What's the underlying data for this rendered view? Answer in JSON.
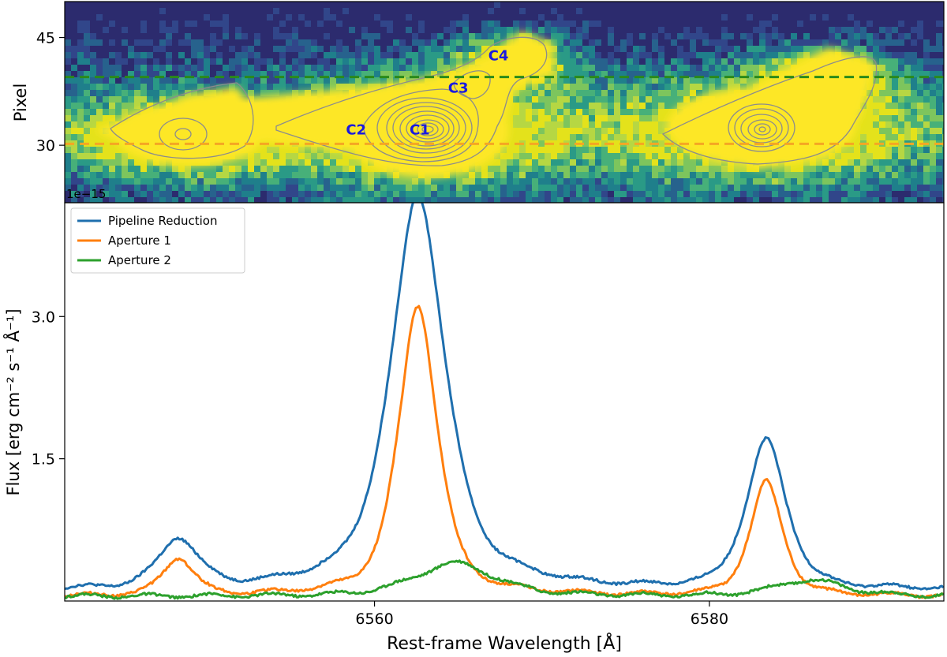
{
  "chart_data": [
    {
      "type": "heatmap",
      "ylabel": "Pixel",
      "yticks": [
        30,
        45
      ],
      "ylim": [
        22,
        50
      ],
      "xlim": [
        6541.5,
        6594.0
      ],
      "offset_text": "1e−15",
      "colormap": "viridis",
      "dashed_lines": [
        {
          "name": "aperture-1-line",
          "y": 30.2,
          "color": "#f5a623"
        },
        {
          "name": "aperture-2-line",
          "y": 39.5,
          "color": "#2a8a1a"
        }
      ],
      "labels": [
        {
          "text": "C1",
          "x": 6562.7,
          "y": 31.5
        },
        {
          "text": "C2",
          "x": 6558.9,
          "y": 31.5
        },
        {
          "text": "C3",
          "x": 6565.0,
          "y": 37.3
        },
        {
          "text": "C4",
          "x": 6567.4,
          "y": 41.8
        }
      ],
      "label_color": "#1a1adf",
      "blobs": [
        {
          "name": "halpha-core",
          "x": 6562.6,
          "y": 31.0
        },
        {
          "name": "nii-6548",
          "x": 6548.2,
          "y": 31.0
        },
        {
          "name": "nii-6583",
          "x": 6583.3,
          "y": 31.0
        }
      ]
    },
    {
      "type": "line",
      "xlabel": "Rest-frame Wavelength [Å]",
      "ylabel": "Flux [erg cm⁻² s⁻¹ Å⁻¹]",
      "xlim": [
        6541.5,
        6594.0
      ],
      "ylim": [
        0.0,
        4.2
      ],
      "xticks": [
        6560,
        6580
      ],
      "yticks": [
        1.5,
        3.0
      ],
      "legend_loc": "upper-left",
      "series": [
        {
          "name": "Pipeline Reduction",
          "color": "#1f6fae",
          "baseline": 0.12,
          "lines": [
            {
              "center": 6548.3,
              "amp": 0.52,
              "width": 1.3
            },
            {
              "center": 6562.6,
              "amp": 4.0,
              "width": 1.7
            },
            {
              "center": 6583.4,
              "amp": 1.56,
              "width": 1.3
            }
          ],
          "shoulder": 0.55
        },
        {
          "name": "Aperture 1",
          "color": "#ff7f0e",
          "baseline": 0.05,
          "lines": [
            {
              "center": 6548.3,
              "amp": 0.4,
              "width": 1.0
            },
            {
              "center": 6562.6,
              "amp": 3.02,
              "width": 1.25
            },
            {
              "center": 6583.4,
              "amp": 1.2,
              "width": 1.05
            }
          ],
          "shoulder": 0.15
        },
        {
          "name": "Aperture 2",
          "color": "#2ca02c",
          "baseline": 0.05,
          "lines": [
            {
              "center": 6564.8,
              "amp": 0.35,
              "width": 2.6
            },
            {
              "center": 6586.0,
              "amp": 0.17,
              "width": 2.2
            }
          ],
          "shoulder": 0.0
        }
      ]
    }
  ]
}
